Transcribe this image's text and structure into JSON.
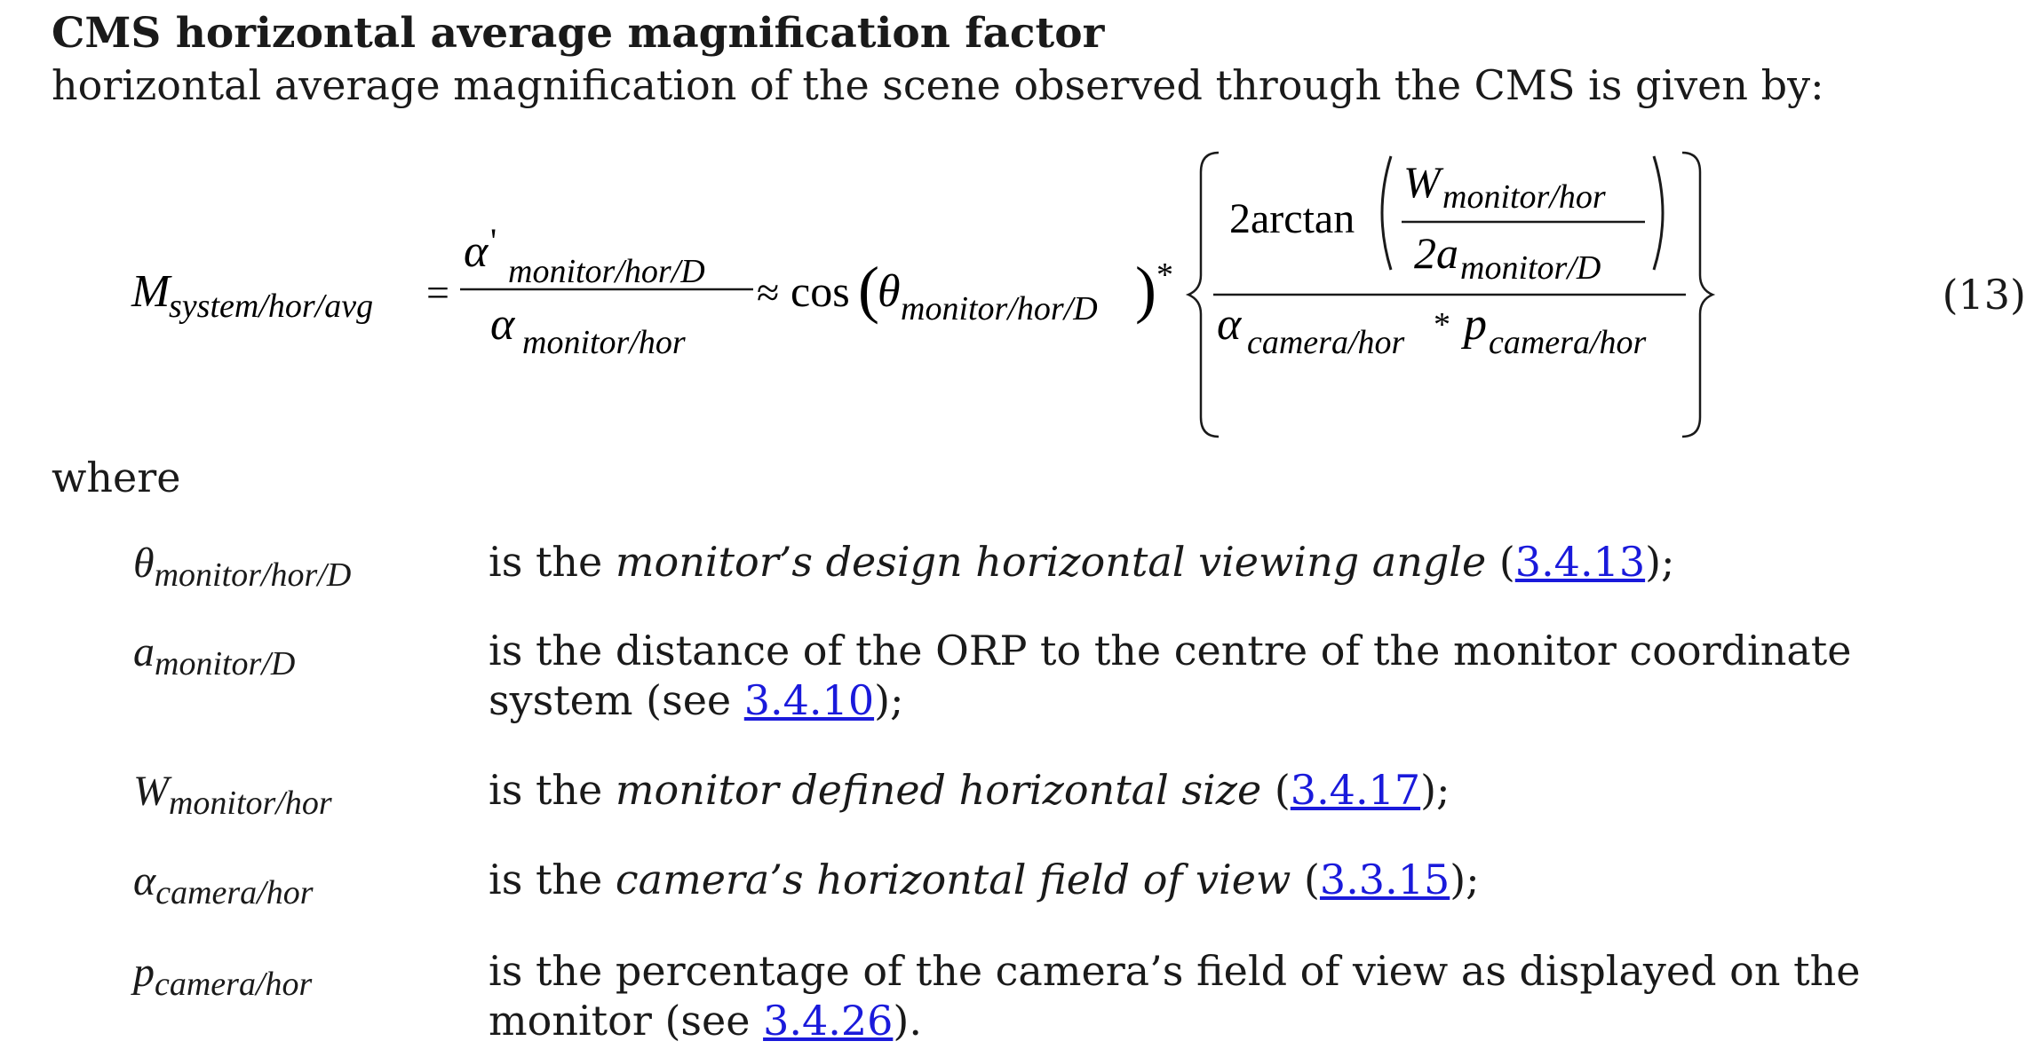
{
  "heading": "CMS horizontal average magnification factor",
  "intro": "horizontal average magnification of the scene observed through the CMS is given by:",
  "equation": {
    "lhs_symbol": "M",
    "lhs_sub": "system/hor/avg",
    "eq_sign": "=",
    "alpha": "α",
    "prime": "'",
    "num_sub": "monitor/hor/D",
    "den_sub": "monitor/hor",
    "approx": "≈",
    "cos": "cos",
    "theta": "θ",
    "theta_sub": "monitor/hor/D",
    "star": "*",
    "two_arctan": "2arctan",
    "W": "W",
    "W_sub": "monitor/hor",
    "two_a": "2a",
    "a_sub": "monitor/D",
    "alpha_cam_sub": "camera/hor",
    "p": "p",
    "p_sub": "camera/hor",
    "number": "(13)"
  },
  "where_label": "where",
  "definitions": [
    {
      "symbol": "θ",
      "sub": "monitor/hor/D",
      "pre": "is the ",
      "em": "monitor’s design horizontal viewing angle",
      "mid": " (",
      "link": "3.4.13",
      "post": ");"
    },
    {
      "symbol": "a",
      "sub": "monitor/D",
      "pre": "is the distance of the ORP to the centre of the monitor coordinate system (see ",
      "em": "",
      "mid": "",
      "link": "3.4.10",
      "post": ");"
    },
    {
      "symbol": "W",
      "sub": "monitor/hor",
      "pre": "is the ",
      "em": "monitor defined horizontal size",
      "mid": " (",
      "link": "3.4.17",
      "post": ");"
    },
    {
      "symbol": "α",
      "sub": "camera/hor",
      "pre": "is the ",
      "em": "camera’s horizontal field of view",
      "mid": " (",
      "link": "3.3.15",
      "post": ");"
    },
    {
      "symbol": "p",
      "sub": "camera/hor",
      "pre": "is the percentage of the camera’s field of view as displayed on the monitor (see ",
      "em": "",
      "mid": "",
      "link": "3.4.26",
      "post": ")."
    }
  ]
}
